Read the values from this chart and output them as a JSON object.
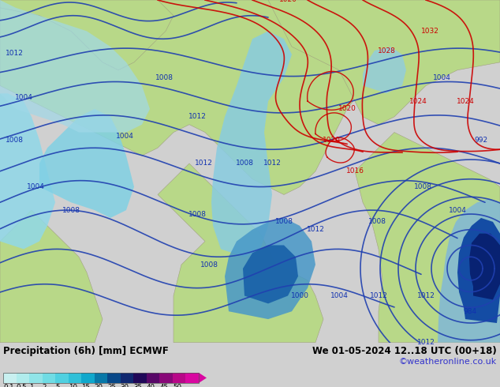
{
  "title_left": "Precipitation (6h) [mm] ECMWF",
  "title_right": "We 01-05-2024 12..18 UTC (00+18)",
  "subtitle_right": "©weatheronline.co.uk",
  "label_vals": [
    "0.1",
    "0.5",
    "1",
    "2",
    "5",
    "10",
    "15",
    "20",
    "25",
    "30",
    "35",
    "40",
    "45",
    "50"
  ],
  "cbar_colors": [
    "#c8f0f0",
    "#b0ecec",
    "#90e4e8",
    "#70dce4",
    "#50d0e0",
    "#30c0d8",
    "#10a8cc",
    "#0878a8",
    "#084888",
    "#102870",
    "#200858",
    "#580868",
    "#880878",
    "#b80888",
    "#d808a0"
  ],
  "land_color": "#b8d888",
  "sea_color": "#d8eef8",
  "precip_light": "#a0dce8",
  "precip_medium": "#60b8d8",
  "precip_dark": "#1060a8",
  "bg_color": "#c8d8c8",
  "bottom_bg": "#d0d0d0",
  "fig_width": 6.34,
  "fig_height": 4.9,
  "dpi": 100
}
